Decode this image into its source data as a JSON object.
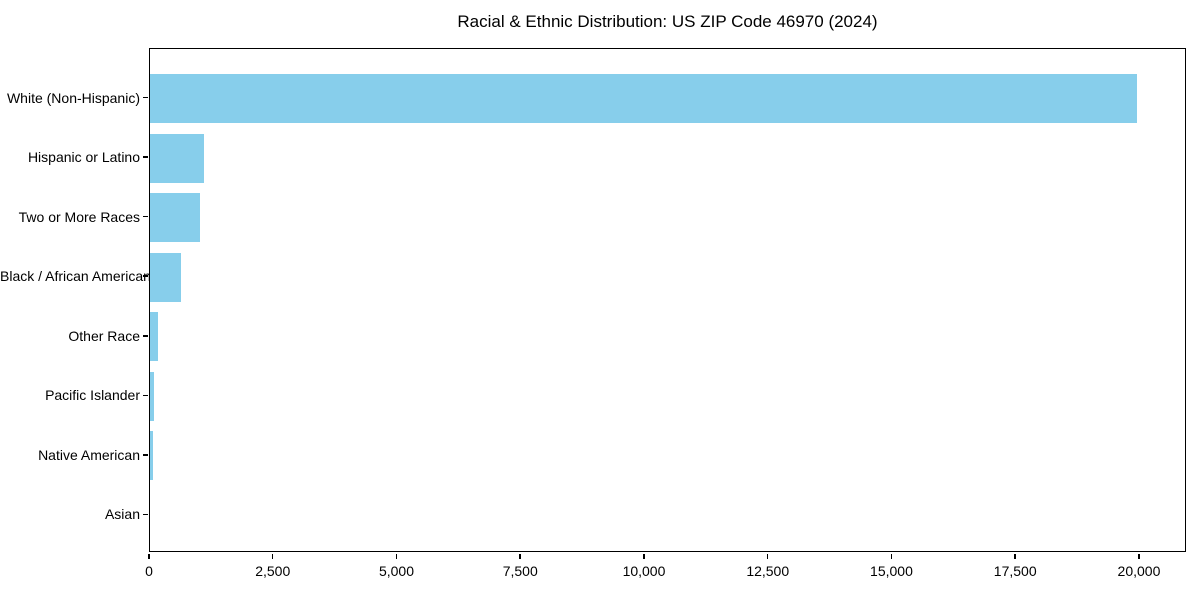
{
  "chart_data": {
    "type": "bar",
    "orientation": "horizontal",
    "title": "Racial & Ethnic Distribution: US ZIP Code 46970 (2024)",
    "categories": [
      "White (Non-Hispanic)",
      "Hispanic or Latino",
      "Two or More Races",
      "Black / African American",
      "Other Race",
      "Pacific Islander",
      "Native American",
      "Asian"
    ],
    "values": [
      19940,
      1100,
      1010,
      620,
      170,
      90,
      65,
      0
    ],
    "xlabel": "",
    "ylabel": "",
    "xlim": [
      0,
      20950
    ],
    "x_ticks": [
      0,
      2500,
      5000,
      7500,
      10000,
      12500,
      15000,
      17500,
      20000
    ],
    "x_tick_labels": [
      "0",
      "2,500",
      "5,000",
      "7,500",
      "10,000",
      "12,500",
      "15,000",
      "17,500",
      "20,000"
    ],
    "grid": false,
    "legend": null,
    "bar_color": "#87CEEB"
  },
  "colors": {
    "bar": "#87CEEB",
    "axis": "#000000",
    "text": "#000000",
    "background": "#FFFFFF"
  }
}
